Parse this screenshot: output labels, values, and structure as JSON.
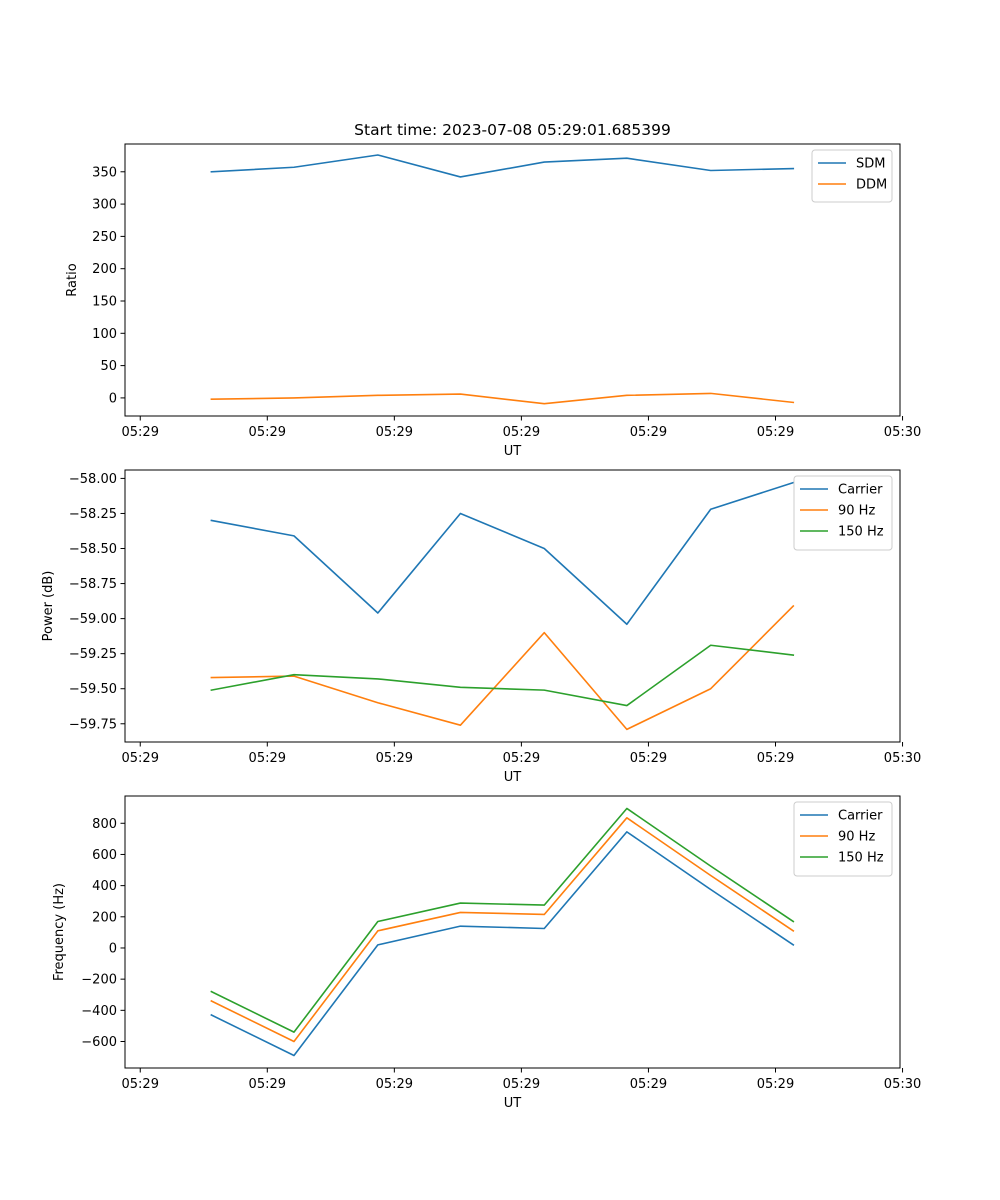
{
  "title": "Start time: 2023-07-08 05:29:01.685399",
  "colors": {
    "blue": "#1f77b4",
    "orange": "#ff7f0e",
    "green": "#2ca02c"
  },
  "chart_data": [
    {
      "type": "line",
      "title": "Start time: 2023-07-08 05:29:01.685399",
      "xlabel": "UT",
      "ylabel": "Ratio",
      "x": [
        0.68,
        1.33,
        1.99,
        2.64,
        3.3,
        3.95,
        4.61,
        5.26
      ],
      "xlim": [
        0.0,
        6.1
      ],
      "xticks": [
        0.12,
        1.12,
        2.12,
        3.12,
        4.12,
        5.12,
        6.12
      ],
      "xtick_labels": [
        "05:29",
        "05:29",
        "05:29",
        "05:29",
        "05:29",
        "05:29",
        "05:30"
      ],
      "ylim": [
        -28,
        393
      ],
      "yticks": [
        0,
        50,
        100,
        150,
        200,
        250,
        300,
        350
      ],
      "ytick_labels": [
        "0",
        "50",
        "100",
        "150",
        "200",
        "250",
        "300",
        "350"
      ],
      "legend_position": "top-right",
      "grid": false,
      "series": [
        {
          "name": "SDM",
          "color": "#1f77b4",
          "values": [
            350,
            357,
            376,
            342,
            365,
            371,
            352,
            355
          ]
        },
        {
          "name": "DDM",
          "color": "#ff7f0e",
          "values": [
            -2,
            0,
            4,
            6,
            -9,
            4,
            7,
            -7
          ]
        }
      ]
    },
    {
      "type": "line",
      "xlabel": "UT",
      "ylabel": "Power (dB)",
      "x": [
        0.68,
        1.33,
        1.99,
        2.64,
        3.3,
        3.95,
        4.61,
        5.26
      ],
      "xlim": [
        0.0,
        6.1
      ],
      "xticks": [
        0.12,
        1.12,
        2.12,
        3.12,
        4.12,
        5.12,
        6.12
      ],
      "xtick_labels": [
        "05:29",
        "05:29",
        "05:29",
        "05:29",
        "05:29",
        "05:29",
        "05:30"
      ],
      "ylim": [
        -59.88,
        -57.94
      ],
      "yticks": [
        -59.75,
        -59.5,
        -59.25,
        -59.0,
        -58.75,
        -58.5,
        -58.25,
        -58.0
      ],
      "ytick_labels": [
        "−59.75",
        "−59.50",
        "−59.25",
        "−59.00",
        "−58.75",
        "−58.50",
        "−58.25",
        "−58.00"
      ],
      "legend_position": "top-right",
      "grid": false,
      "series": [
        {
          "name": "Carrier",
          "color": "#1f77b4",
          "values": [
            -58.3,
            -58.41,
            -58.96,
            -58.25,
            -58.5,
            -59.04,
            -58.22,
            -58.03
          ]
        },
        {
          "name": "90 Hz",
          "color": "#ff7f0e",
          "values": [
            -59.42,
            -59.41,
            -59.6,
            -59.76,
            -59.1,
            -59.79,
            -59.5,
            -58.91
          ]
        },
        {
          "name": "150 Hz",
          "color": "#2ca02c",
          "values": [
            -59.51,
            -59.4,
            -59.43,
            -59.49,
            -59.51,
            -59.62,
            -59.19,
            -59.26
          ]
        }
      ]
    },
    {
      "type": "line",
      "xlabel": "UT",
      "ylabel": "Frequency (Hz)",
      "x": [
        0.68,
        1.33,
        1.99,
        2.64,
        3.3,
        3.95,
        4.61,
        5.26
      ],
      "xlim": [
        0.0,
        6.1
      ],
      "xticks": [
        0.12,
        1.12,
        2.12,
        3.12,
        4.12,
        5.12,
        6.12
      ],
      "xtick_labels": [
        "05:29",
        "05:29",
        "05:29",
        "05:29",
        "05:29",
        "05:29",
        "05:30"
      ],
      "ylim": [
        -770,
        975
      ],
      "yticks": [
        -600,
        -400,
        -200,
        0,
        200,
        400,
        600,
        800
      ],
      "ytick_labels": [
        "−600",
        "−400",
        "−200",
        "0",
        "200",
        "400",
        "600",
        "800"
      ],
      "legend_position": "top-right",
      "grid": false,
      "series": [
        {
          "name": "Carrier",
          "color": "#1f77b4",
          "values": [
            -430,
            -690,
            20,
            140,
            125,
            745,
            375,
            20
          ]
        },
        {
          "name": "90 Hz",
          "color": "#ff7f0e",
          "values": [
            -340,
            -600,
            110,
            228,
            215,
            835,
            465,
            110
          ]
        },
        {
          "name": "150 Hz",
          "color": "#2ca02c",
          "values": [
            -280,
            -540,
            170,
            288,
            275,
            895,
            525,
            170
          ]
        }
      ]
    }
  ]
}
